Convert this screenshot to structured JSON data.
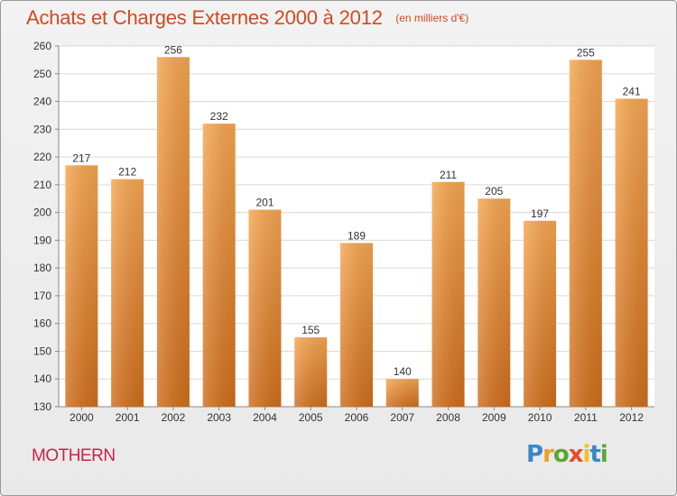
{
  "header": {
    "title": "Achats et Charges Externes 2000 à 2012",
    "unit": "(en milliers d'€)"
  },
  "footer": {
    "commune": "MOTHERN",
    "logo_letters": [
      {
        "char": "P",
        "color": "#3a86c8"
      },
      {
        "char": "r",
        "color": "#f0a020"
      },
      {
        "char": "o",
        "color": "#5aa832"
      },
      {
        "char": "x",
        "color": "#e84c2a"
      },
      {
        "char": "i",
        "color": "#f0c020"
      },
      {
        "char": "t",
        "color": "#3a86c8"
      },
      {
        "char": "i",
        "color": "#5aa832"
      }
    ]
  },
  "colors": {
    "title": "#d24a1f",
    "bar_light": "#f6a651",
    "bar_dark": "#d06e1c",
    "commune": "#c8244a"
  },
  "chart_data": {
    "type": "bar",
    "title": "Achats et Charges Externes 2000 à 2012",
    "xlabel": "",
    "ylabel": "",
    "categories": [
      "2000",
      "2001",
      "2002",
      "2003",
      "2004",
      "2005",
      "2006",
      "2007",
      "2008",
      "2009",
      "2010",
      "2011",
      "2012"
    ],
    "values": [
      217,
      212,
      256,
      232,
      201,
      155,
      189,
      140,
      211,
      205,
      197,
      255,
      241
    ],
    "ylim": [
      130,
      260
    ],
    "yticks": [
      130,
      140,
      150,
      160,
      170,
      180,
      190,
      200,
      210,
      220,
      230,
      240,
      250,
      260
    ],
    "grid": true,
    "data_labels": true
  }
}
